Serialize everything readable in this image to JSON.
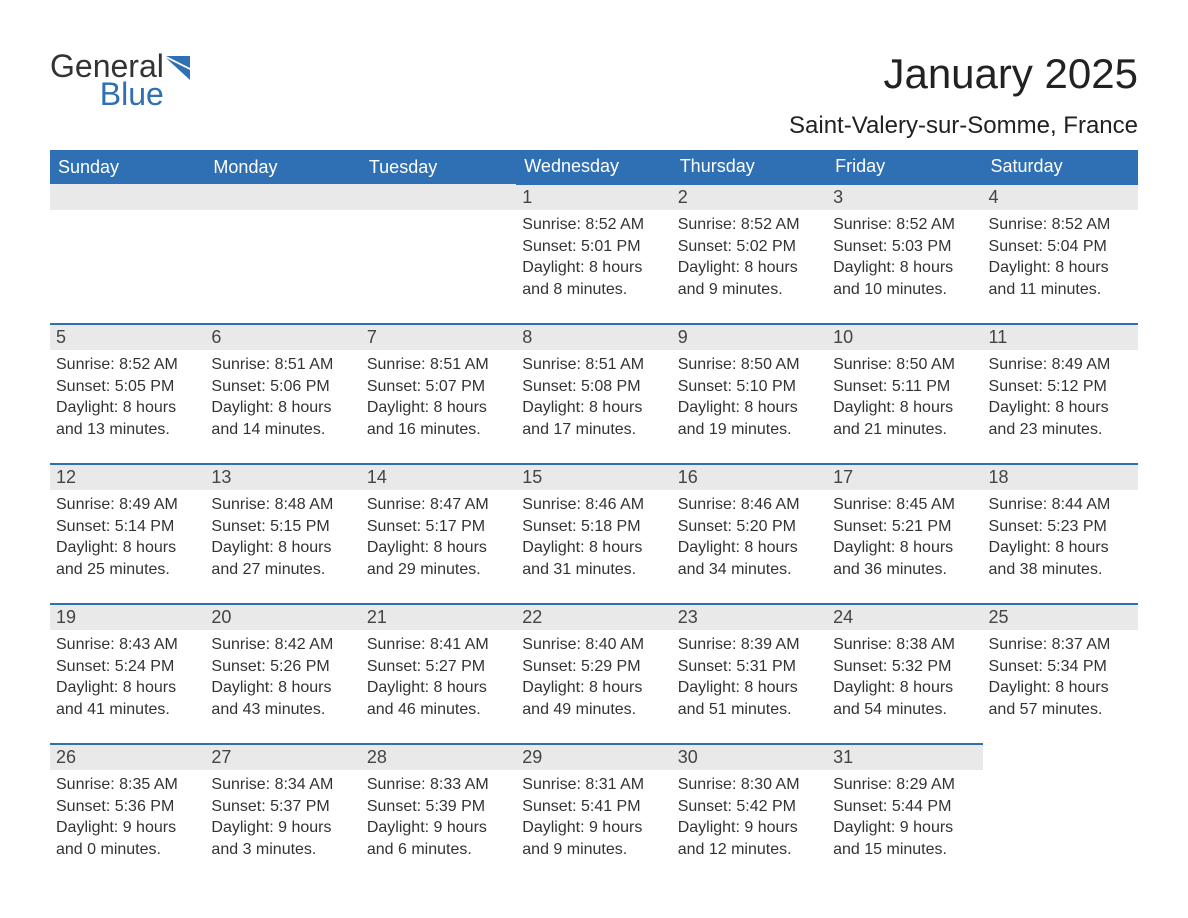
{
  "logo": {
    "word1": "General",
    "word2": "Blue"
  },
  "colors": {
    "header_bg": "#2f6fb3",
    "header_text": "#ffffff",
    "daynum_bg": "#e9e9e9",
    "daynum_text": "#444444",
    "body_text": "#333333",
    "rule": "#2f6fb3",
    "page_bg": "#ffffff",
    "logo_gray": "#333333",
    "logo_blue": "#2f6fb3"
  },
  "typography": {
    "title_fontsize": 42,
    "location_fontsize": 24,
    "header_fontsize": 18,
    "daynum_fontsize": 18,
    "body_fontsize": 16,
    "logo_fontsize": 32
  },
  "title": "January 2025",
  "location": "Saint-Valery-sur-Somme, France",
  "weekdays": [
    "Sunday",
    "Monday",
    "Tuesday",
    "Wednesday",
    "Thursday",
    "Friday",
    "Saturday"
  ],
  "calendar": {
    "type": "monthly-calendar",
    "columns": 7,
    "rows": 5,
    "first_weekday_index": 3,
    "days": [
      {
        "n": "1",
        "sunrise": "8:52 AM",
        "sunset": "5:01 PM",
        "daylight": "8 hours and 8 minutes."
      },
      {
        "n": "2",
        "sunrise": "8:52 AM",
        "sunset": "5:02 PM",
        "daylight": "8 hours and 9 minutes."
      },
      {
        "n": "3",
        "sunrise": "8:52 AM",
        "sunset": "5:03 PM",
        "daylight": "8 hours and 10 minutes."
      },
      {
        "n": "4",
        "sunrise": "8:52 AM",
        "sunset": "5:04 PM",
        "daylight": "8 hours and 11 minutes."
      },
      {
        "n": "5",
        "sunrise": "8:52 AM",
        "sunset": "5:05 PM",
        "daylight": "8 hours and 13 minutes."
      },
      {
        "n": "6",
        "sunrise": "8:51 AM",
        "sunset": "5:06 PM",
        "daylight": "8 hours and 14 minutes."
      },
      {
        "n": "7",
        "sunrise": "8:51 AM",
        "sunset": "5:07 PM",
        "daylight": "8 hours and 16 minutes."
      },
      {
        "n": "8",
        "sunrise": "8:51 AM",
        "sunset": "5:08 PM",
        "daylight": "8 hours and 17 minutes."
      },
      {
        "n": "9",
        "sunrise": "8:50 AM",
        "sunset": "5:10 PM",
        "daylight": "8 hours and 19 minutes."
      },
      {
        "n": "10",
        "sunrise": "8:50 AM",
        "sunset": "5:11 PM",
        "daylight": "8 hours and 21 minutes."
      },
      {
        "n": "11",
        "sunrise": "8:49 AM",
        "sunset": "5:12 PM",
        "daylight": "8 hours and 23 minutes."
      },
      {
        "n": "12",
        "sunrise": "8:49 AM",
        "sunset": "5:14 PM",
        "daylight": "8 hours and 25 minutes."
      },
      {
        "n": "13",
        "sunrise": "8:48 AM",
        "sunset": "5:15 PM",
        "daylight": "8 hours and 27 minutes."
      },
      {
        "n": "14",
        "sunrise": "8:47 AM",
        "sunset": "5:17 PM",
        "daylight": "8 hours and 29 minutes."
      },
      {
        "n": "15",
        "sunrise": "8:46 AM",
        "sunset": "5:18 PM",
        "daylight": "8 hours and 31 minutes."
      },
      {
        "n": "16",
        "sunrise": "8:46 AM",
        "sunset": "5:20 PM",
        "daylight": "8 hours and 34 minutes."
      },
      {
        "n": "17",
        "sunrise": "8:45 AM",
        "sunset": "5:21 PM",
        "daylight": "8 hours and 36 minutes."
      },
      {
        "n": "18",
        "sunrise": "8:44 AM",
        "sunset": "5:23 PM",
        "daylight": "8 hours and 38 minutes."
      },
      {
        "n": "19",
        "sunrise": "8:43 AM",
        "sunset": "5:24 PM",
        "daylight": "8 hours and 41 minutes."
      },
      {
        "n": "20",
        "sunrise": "8:42 AM",
        "sunset": "5:26 PM",
        "daylight": "8 hours and 43 minutes."
      },
      {
        "n": "21",
        "sunrise": "8:41 AM",
        "sunset": "5:27 PM",
        "daylight": "8 hours and 46 minutes."
      },
      {
        "n": "22",
        "sunrise": "8:40 AM",
        "sunset": "5:29 PM",
        "daylight": "8 hours and 49 minutes."
      },
      {
        "n": "23",
        "sunrise": "8:39 AM",
        "sunset": "5:31 PM",
        "daylight": "8 hours and 51 minutes."
      },
      {
        "n": "24",
        "sunrise": "8:38 AM",
        "sunset": "5:32 PM",
        "daylight": "8 hours and 54 minutes."
      },
      {
        "n": "25",
        "sunrise": "8:37 AM",
        "sunset": "5:34 PM",
        "daylight": "8 hours and 57 minutes."
      },
      {
        "n": "26",
        "sunrise": "8:35 AM",
        "sunset": "5:36 PM",
        "daylight": "9 hours and 0 minutes."
      },
      {
        "n": "27",
        "sunrise": "8:34 AM",
        "sunset": "5:37 PM",
        "daylight": "9 hours and 3 minutes."
      },
      {
        "n": "28",
        "sunrise": "8:33 AM",
        "sunset": "5:39 PM",
        "daylight": "9 hours and 6 minutes."
      },
      {
        "n": "29",
        "sunrise": "8:31 AM",
        "sunset": "5:41 PM",
        "daylight": "9 hours and 9 minutes."
      },
      {
        "n": "30",
        "sunrise": "8:30 AM",
        "sunset": "5:42 PM",
        "daylight": "9 hours and 12 minutes."
      },
      {
        "n": "31",
        "sunrise": "8:29 AM",
        "sunset": "5:44 PM",
        "daylight": "9 hours and 15 minutes."
      }
    ]
  },
  "labels": {
    "sunrise": "Sunrise: ",
    "sunset": "Sunset: ",
    "daylight": "Daylight: "
  }
}
